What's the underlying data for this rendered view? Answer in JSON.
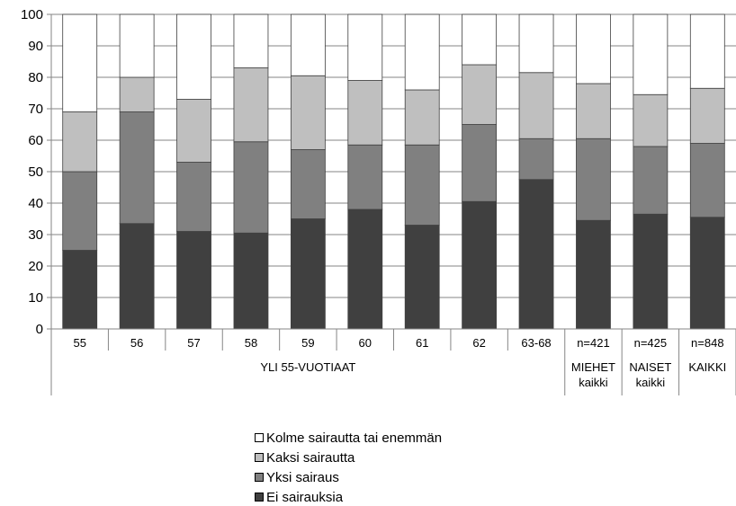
{
  "chart_data": {
    "type": "bar",
    "stacked": true,
    "categories": [
      "55",
      "56",
      "57",
      "58",
      "59",
      "60",
      "61",
      "62",
      "63-68",
      "n=421",
      "n=425",
      "n=848"
    ],
    "category_groups": [
      {
        "label": "YLI 55-VUOTIAAT",
        "span": [
          0,
          8
        ]
      },
      {
        "label": "MIEHET",
        "sublabel": "kaikki",
        "span": [
          9,
          9
        ]
      },
      {
        "label": "NAISET",
        "sublabel": "kaikki",
        "span": [
          10,
          10
        ]
      },
      {
        "label": "KAIKKI",
        "span": [
          11,
          11
        ]
      }
    ],
    "series": [
      {
        "name": "Ei sairauksia",
        "color": "#404040",
        "values": [
          25,
          33.5,
          31,
          30.5,
          35,
          38,
          33,
          40.5,
          47.5,
          34.5,
          36.5,
          35.5
        ]
      },
      {
        "name": "Yksi sairaus",
        "color": "#808080",
        "values": [
          25,
          35.5,
          22,
          29,
          22,
          20.5,
          25.5,
          24.5,
          13,
          26,
          21.5,
          23.5
        ]
      },
      {
        "name": "Kaksi sairautta",
        "color": "#bfbfbf",
        "values": [
          19,
          11,
          20,
          23.5,
          23.5,
          20.5,
          17.5,
          19,
          21,
          17.5,
          16.5,
          17.5
        ]
      },
      {
        "name": "Kolme sairautta tai enemmän",
        "color": "#ffffff",
        "values": [
          31,
          20,
          27,
          17,
          19.5,
          21,
          24,
          16,
          18.5,
          22,
          25.5,
          23.5
        ]
      }
    ],
    "ylim": [
      0,
      100
    ],
    "yticks": [
      "0",
      "10",
      "20",
      "30",
      "40",
      "50",
      "60",
      "70",
      "80",
      "90",
      "100"
    ],
    "grid": true,
    "legend_position": "bottom",
    "legend_order": [
      "Kolme sairautta tai enemmän",
      "Kaksi sairautta",
      "Yksi sairaus",
      "Ei sairauksia"
    ]
  }
}
